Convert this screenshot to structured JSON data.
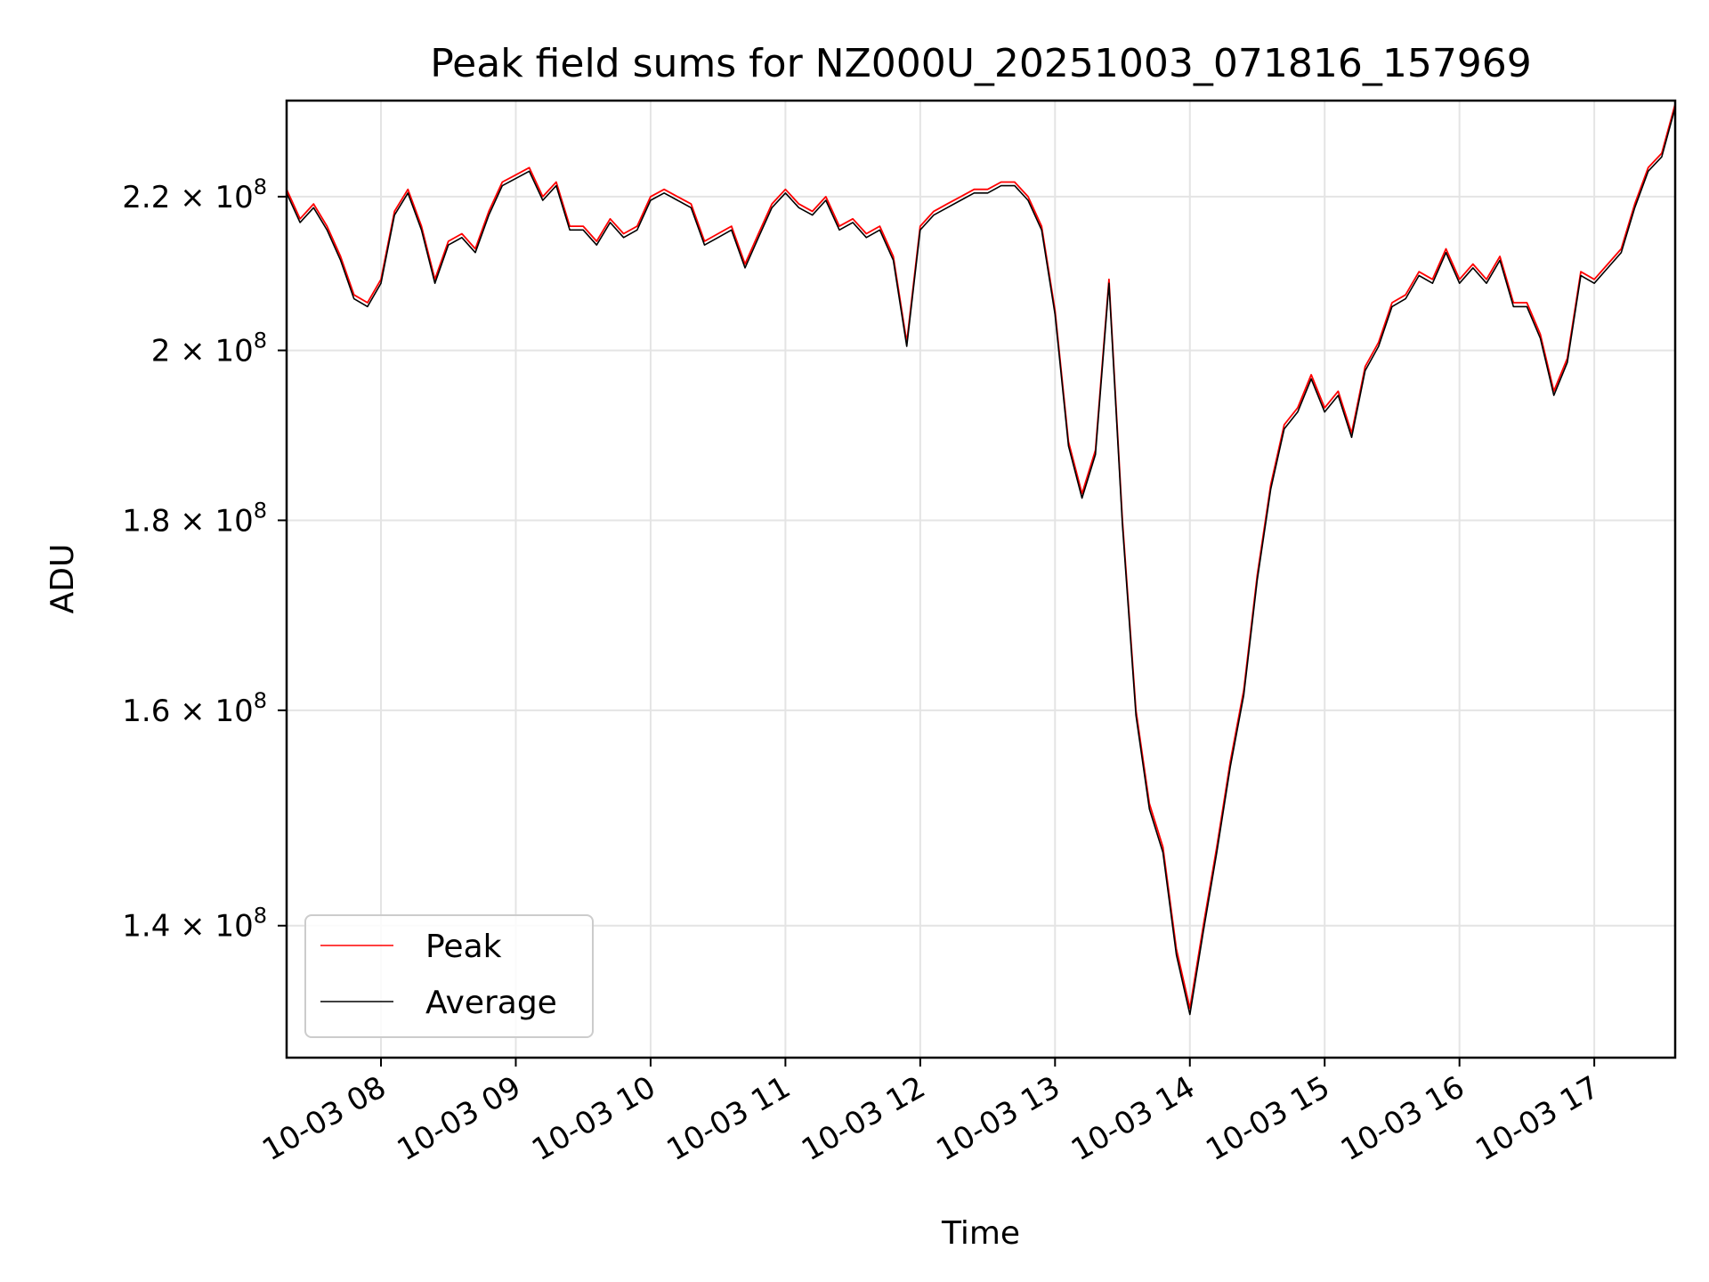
{
  "chart_data": {
    "type": "line",
    "title": "Peak field sums for NZ000U_20251003_071816_157969",
    "xlabel": "Time",
    "ylabel": "ADU",
    "yscale": "log",
    "grid": true,
    "legend_position": "lower-left",
    "x_date": "2025-10-03",
    "xlim": [
      "07:18",
      "17:36"
    ],
    "ylim": [
      129000000,
      233500000
    ],
    "x_ticks": [
      "08:00",
      "09:00",
      "10:00",
      "11:00",
      "12:00",
      "13:00",
      "14:00",
      "15:00",
      "16:00",
      "17:00"
    ],
    "x_tick_labels": [
      "10-03 08",
      "10-03 09",
      "10-03 10",
      "10-03 11",
      "10-03 12",
      "10-03 13",
      "10-03 14",
      "10-03 15",
      "10-03 16",
      "10-03 17"
    ],
    "y_ticks": [
      140000000,
      160000000,
      180000000,
      200000000,
      220000000
    ],
    "y_tick_labels": [
      {
        "mantissa": "1.4",
        "base": "10",
        "exp": "8"
      },
      {
        "mantissa": "1.6",
        "base": "10",
        "exp": "8"
      },
      {
        "mantissa": "1.8",
        "base": "10",
        "exp": "8"
      },
      {
        "mantissa": "2",
        "base": "10",
        "exp": "8"
      },
      {
        "mantissa": "2.2",
        "base": "10",
        "exp": "8"
      }
    ],
    "series": [
      {
        "name": "Peak",
        "color": "#ff0000",
        "x": [
          "07:18",
          "07:24",
          "07:30",
          "07:36",
          "07:42",
          "07:48",
          "07:54",
          "08:00",
          "08:06",
          "08:12",
          "08:18",
          "08:24",
          "08:30",
          "08:36",
          "08:42",
          "08:48",
          "08:54",
          "09:00",
          "09:06",
          "09:12",
          "09:18",
          "09:24",
          "09:30",
          "09:36",
          "09:42",
          "09:48",
          "09:54",
          "10:00",
          "10:06",
          "10:12",
          "10:18",
          "10:24",
          "10:30",
          "10:36",
          "10:42",
          "10:48",
          "10:54",
          "11:00",
          "11:06",
          "11:12",
          "11:18",
          "11:24",
          "11:30",
          "11:36",
          "11:42",
          "11:48",
          "11:54",
          "12:00",
          "12:06",
          "12:12",
          "12:18",
          "12:24",
          "12:30",
          "12:36",
          "12:42",
          "12:48",
          "12:54",
          "13:00",
          "13:06",
          "13:12",
          "13:18",
          "13:24",
          "13:30",
          "13:36",
          "13:42",
          "13:48",
          "13:54",
          "14:00",
          "14:06",
          "14:12",
          "14:18",
          "14:24",
          "14:30",
          "14:36",
          "14:42",
          "14:48",
          "14:54",
          "15:00",
          "15:06",
          "15:12",
          "15:18",
          "15:24",
          "15:30",
          "15:36",
          "15:42",
          "15:48",
          "15:54",
          "16:00",
          "16:06",
          "16:12",
          "16:18",
          "16:24",
          "16:30",
          "16:36",
          "16:42",
          "16:48",
          "16:54",
          "17:00",
          "17:06",
          "17:12",
          "17:18",
          "17:24",
          "17:30",
          "17:36"
        ],
        "y": [
          221000000,
          217000000,
          219000000,
          216000000,
          212000000,
          207000000,
          206000000,
          209000000,
          218000000,
          221000000,
          216000000,
          209000000,
          214000000,
          215000000,
          213000000,
          218000000,
          222000000,
          223000000,
          224000000,
          220000000,
          222000000,
          216000000,
          216000000,
          214000000,
          217000000,
          215000000,
          216000000,
          220000000,
          221000000,
          220000000,
          219000000,
          214000000,
          215000000,
          216000000,
          211000000,
          215000000,
          219000000,
          221000000,
          219000000,
          218000000,
          220000000,
          216000000,
          217000000,
          215000000,
          216000000,
          212000000,
          201000000,
          216000000,
          218000000,
          219000000,
          220000000,
          221000000,
          221000000,
          222000000,
          222000000,
          220000000,
          216000000,
          205000000,
          189000000,
          183000000,
          188000000,
          209000000,
          180000000,
          160000000,
          151000000,
          147000000,
          138000000,
          133000000,
          140000000,
          147000000,
          155000000,
          162000000,
          174000000,
          184000000,
          191000000,
          193000000,
          197000000,
          193000000,
          195000000,
          190000000,
          198000000,
          201000000,
          206000000,
          207000000,
          210000000,
          209000000,
          213000000,
          209000000,
          211000000,
          209000000,
          212000000,
          206000000,
          206000000,
          202000000,
          195000000,
          199000000,
          210000000,
          209000000,
          211000000,
          213000000,
          219000000,
          224000000,
          226000000,
          233000000
        ]
      },
      {
        "name": "Average",
        "color": "#000000",
        "x": [
          "07:18",
          "07:24",
          "07:30",
          "07:36",
          "07:42",
          "07:48",
          "07:54",
          "08:00",
          "08:06",
          "08:12",
          "08:18",
          "08:24",
          "08:30",
          "08:36",
          "08:42",
          "08:48",
          "08:54",
          "09:00",
          "09:06",
          "09:12",
          "09:18",
          "09:24",
          "09:30",
          "09:36",
          "09:42",
          "09:48",
          "09:54",
          "10:00",
          "10:06",
          "10:12",
          "10:18",
          "10:24",
          "10:30",
          "10:36",
          "10:42",
          "10:48",
          "10:54",
          "11:00",
          "11:06",
          "11:12",
          "11:18",
          "11:24",
          "11:30",
          "11:36",
          "11:42",
          "11:48",
          "11:54",
          "12:00",
          "12:06",
          "12:12",
          "12:18",
          "12:24",
          "12:30",
          "12:36",
          "12:42",
          "12:48",
          "12:54",
          "13:00",
          "13:06",
          "13:12",
          "13:18",
          "13:24",
          "13:30",
          "13:36",
          "13:42",
          "13:48",
          "13:54",
          "14:00",
          "14:06",
          "14:12",
          "14:18",
          "14:24",
          "14:30",
          "14:36",
          "14:42",
          "14:48",
          "14:54",
          "15:00",
          "15:06",
          "15:12",
          "15:18",
          "15:24",
          "15:30",
          "15:36",
          "15:42",
          "15:48",
          "15:54",
          "16:00",
          "16:06",
          "16:12",
          "16:18",
          "16:24",
          "16:30",
          "16:36",
          "16:42",
          "16:48",
          "16:54",
          "17:00",
          "17:06",
          "17:12",
          "17:18",
          "17:24",
          "17:30",
          "17:36"
        ],
        "y": [
          220500000,
          216500000,
          218500000,
          215500000,
          211500000,
          206500000,
          205500000,
          208500000,
          217500000,
          220500000,
          215500000,
          208500000,
          213500000,
          214500000,
          212500000,
          217500000,
          221500000,
          222500000,
          223500000,
          219500000,
          221500000,
          215500000,
          215500000,
          213500000,
          216500000,
          214500000,
          215500000,
          219500000,
          220500000,
          219500000,
          218500000,
          213500000,
          214500000,
          215500000,
          210500000,
          214500000,
          218500000,
          220500000,
          218500000,
          217500000,
          219500000,
          215500000,
          216500000,
          214500000,
          215500000,
          211500000,
          200500000,
          215500000,
          217500000,
          218500000,
          219500000,
          220500000,
          220500000,
          221500000,
          221500000,
          219500000,
          215500000,
          204500000,
          188500000,
          182500000,
          187500000,
          208500000,
          179500000,
          159500000,
          150500000,
          146500000,
          137500000,
          132500000,
          139500000,
          146500000,
          154500000,
          161500000,
          173500000,
          183500000,
          190500000,
          192500000,
          196500000,
          192500000,
          194500000,
          189500000,
          197500000,
          200500000,
          205500000,
          206500000,
          209500000,
          208500000,
          212500000,
          208500000,
          210500000,
          208500000,
          211500000,
          205500000,
          205500000,
          201500000,
          194500000,
          198500000,
          209500000,
          208500000,
          210500000,
          212500000,
          218500000,
          223500000,
          225500000,
          232500000
        ]
      }
    ]
  }
}
